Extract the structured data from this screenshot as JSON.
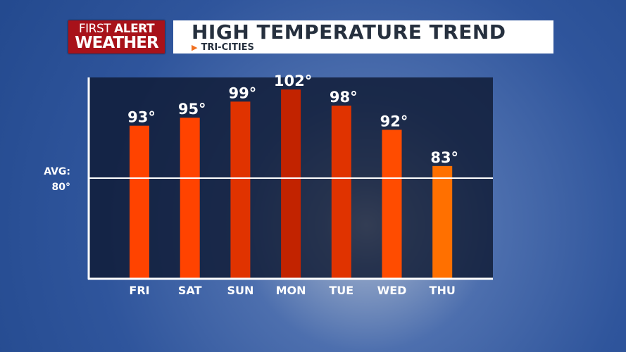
{
  "header": {
    "logo_line1_a": "FIRST",
    "logo_line1_b": "ALERT",
    "logo_line2": "WEATHER",
    "title": "HIGH TEMPERATURE TREND",
    "subtitle": "TRI-CITIES"
  },
  "chart_data": {
    "type": "bar",
    "title": "HIGH TEMPERATURE TREND",
    "subtitle": "TRI-CITIES",
    "categories": [
      "FRI",
      "SAT",
      "SUN",
      "MON",
      "TUE",
      "WED",
      "THU"
    ],
    "values": [
      93,
      95,
      99,
      102,
      98,
      92,
      83
    ],
    "data_labels": [
      "93°",
      "95°",
      "99°",
      "102°",
      "98°",
      "92°",
      "83°"
    ],
    "bar_colors": [
      "#ff4300",
      "#ff4300",
      "#e03300",
      "#c22300",
      "#e03300",
      "#ff4c00",
      "#ff7000"
    ],
    "reference_line": {
      "label_line1": "AVG:",
      "label_line2": "80°",
      "value": 80
    },
    "ylim": [
      55,
      105
    ],
    "grid": false
  }
}
